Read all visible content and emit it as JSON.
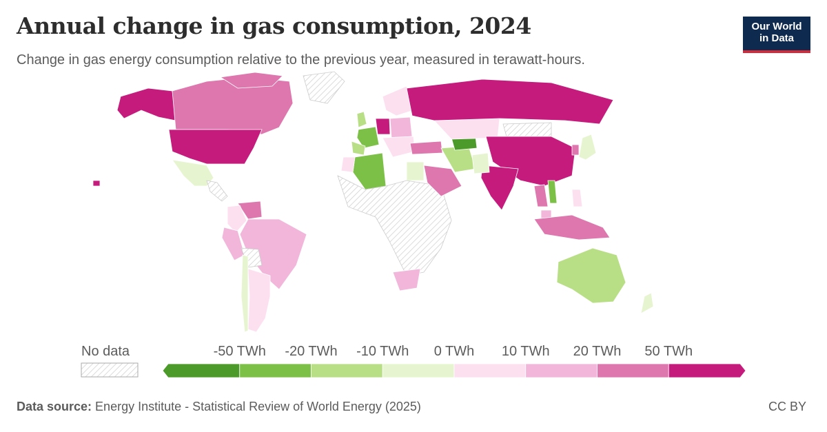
{
  "header": {
    "title": "Annual change in gas consumption, 2024",
    "subtitle": "Change in gas energy consumption relative to the previous year, measured in terawatt-hours."
  },
  "logo": {
    "line1": "Our World",
    "line2": "in Data"
  },
  "legend": {
    "no_data_label": "No data",
    "ticks": [
      "-50 TWh",
      "-20 TWh",
      "-10 TWh",
      "0 TWh",
      "10 TWh",
      "20 TWh",
      "50 TWh"
    ],
    "bins": [
      {
        "color": "#4c9a2a",
        "range": "< -50 TWh"
      },
      {
        "color": "#7cc047",
        "range": "-50 to -20 TWh"
      },
      {
        "color": "#b8df86",
        "range": "-20 to -10 TWh"
      },
      {
        "color": "#e6f5d0",
        "range": "-10 to 0 TWh"
      },
      {
        "color": "#fde0ef",
        "range": "0 to 10 TWh"
      },
      {
        "color": "#f1b6da",
        "range": "10 to 20 TWh"
      },
      {
        "color": "#de77ae",
        "range": "20 to 50 TWh"
      },
      {
        "color": "#c51b7d",
        "range": "> 50 TWh"
      }
    ]
  },
  "map_data": {
    "United States": "> 50 TWh",
    "Canada": "20 to 50 TWh",
    "Alaska": "> 50 TWh",
    "Greenland": "No data",
    "Mexico": "-10 to 0 TWh",
    "Venezuela": "20 to 50 TWh",
    "Colombia": "0 to 10 TWh",
    "Brazil": "10 to 20 TWh",
    "Peru": "10 to 20 TWh",
    "Argentina": "0 to 10 TWh",
    "Chile": "-10 to 0 TWh",
    "Russia": "> 50 TWh",
    "China": "> 50 TWh",
    "India": "> 50 TWh",
    "Kazakhstan": "0 to 10 TWh",
    "Iran": "-10 to 0 TWh",
    "Saudi Arabia": "20 to 50 TWh",
    "Turkey": "20 to 50 TWh",
    "Turkmenistan": "< -50 TWh",
    "Algeria": "-50 to -20 TWh",
    "Egypt": "-10 to 0 TWh",
    "France": "-50 to -20 TWh",
    "Germany": "> 50 TWh",
    "Spain": "-20 to -10 TWh",
    "United Kingdom": "-20 to -10 TWh",
    "Australia": "-20 to -10 TWh",
    "Indonesia": "20 to 50 TWh",
    "Japan": "-10 to 0 TWh",
    "South Africa": "10 to 20 TWh",
    "Thailand": "20 to 50 TWh",
    "Vietnam": "-50 to -20 TWh"
  },
  "footer": {
    "source_label": "Data source:",
    "source_text": " Energy Institute - Statistical Review of World Energy (2025)",
    "license": "CC BY"
  }
}
